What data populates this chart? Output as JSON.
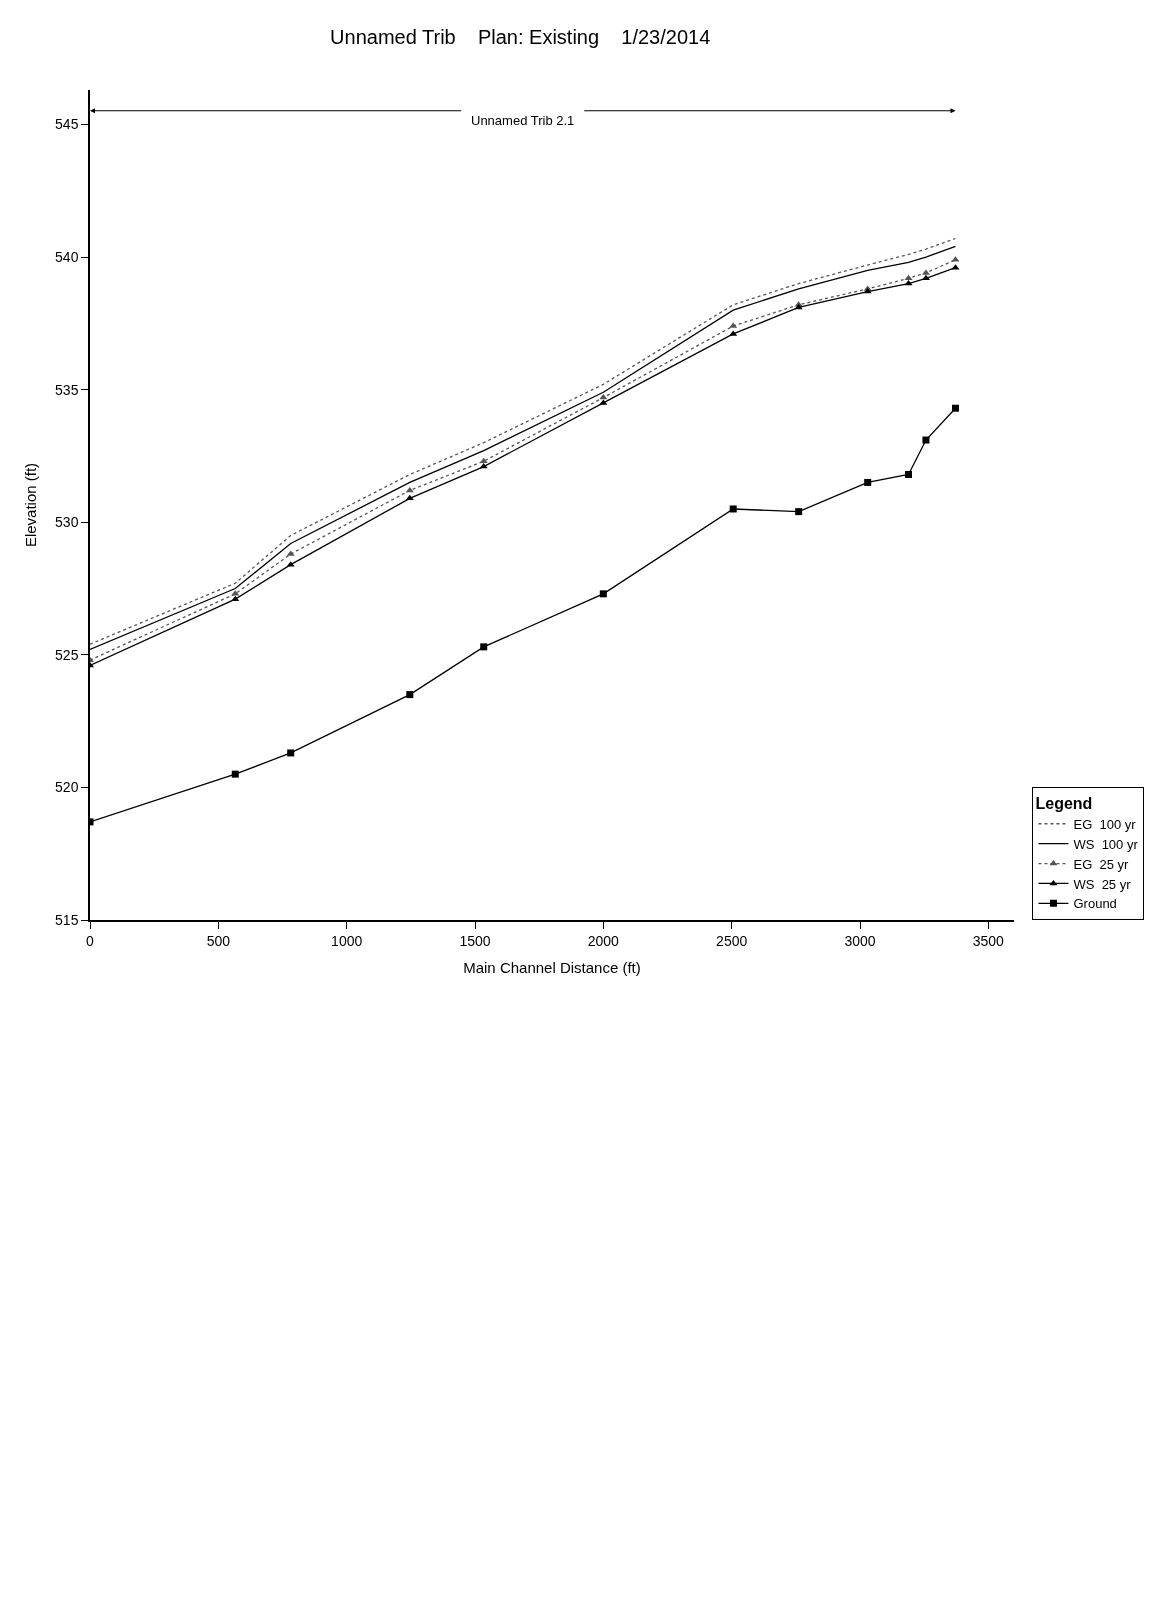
{
  "chart_data": {
    "type": "line",
    "title": "Unnamed Trib    Plan: Existing    1/23/2014",
    "xlabel": "Main Channel Distance (ft)",
    "ylabel": "Elevation (ft)",
    "legend_title": "Legend",
    "x": [
      0,
      566,
      782,
      1246,
      1534,
      2000,
      2506,
      2761,
      3030,
      3189,
      3257,
      3372
    ],
    "series": [
      {
        "name": "EG  100 yr",
        "color": "#555555",
        "line_style": "dotted",
        "marker": "none",
        "values": [
          525.4,
          527.7,
          529.5,
          531.8,
          533.0,
          535.2,
          538.2,
          539.0,
          539.7,
          540.1,
          540.3,
          540.7
        ]
      },
      {
        "name": "WS  100 yr",
        "color": "#000000",
        "line_style": "solid",
        "marker": "none",
        "values": [
          525.2,
          527.5,
          529.2,
          531.5,
          532.7,
          534.9,
          538.0,
          538.8,
          539.5,
          539.8,
          540.0,
          540.4
        ]
      },
      {
        "name": "EG  25 yr",
        "color": "#555555",
        "line_style": "dotted",
        "marker": "triangle",
        "values": [
          524.8,
          527.3,
          528.8,
          531.2,
          532.3,
          534.7,
          537.4,
          538.2,
          538.8,
          539.2,
          539.4,
          539.9
        ]
      },
      {
        "name": "WS  25 yr",
        "color": "#000000",
        "line_style": "solid",
        "marker": "triangle",
        "values": [
          524.6,
          527.1,
          528.4,
          530.9,
          532.1,
          534.5,
          537.1,
          538.1,
          538.7,
          539.0,
          539.2,
          539.6
        ]
      },
      {
        "name": "Ground",
        "color": "#000000",
        "line_style": "solid",
        "marker": "square",
        "values": [
          518.7,
          520.5,
          521.3,
          523.5,
          525.3,
          527.3,
          530.5,
          530.4,
          531.5,
          531.8,
          533.1,
          534.3
        ]
      }
    ],
    "annotations": [
      "Unnamed Trib 2.1"
    ],
    "xlim": [
      0,
      3600
    ],
    "xticks": [
      0,
      500,
      1000,
      1500,
      2000,
      2500,
      3000,
      3500
    ],
    "ylim": [
      515,
      546.3
    ],
    "yticks": [
      515,
      520,
      525,
      530,
      535,
      540,
      545
    ],
    "grid": false,
    "legend": "bottom right"
  }
}
